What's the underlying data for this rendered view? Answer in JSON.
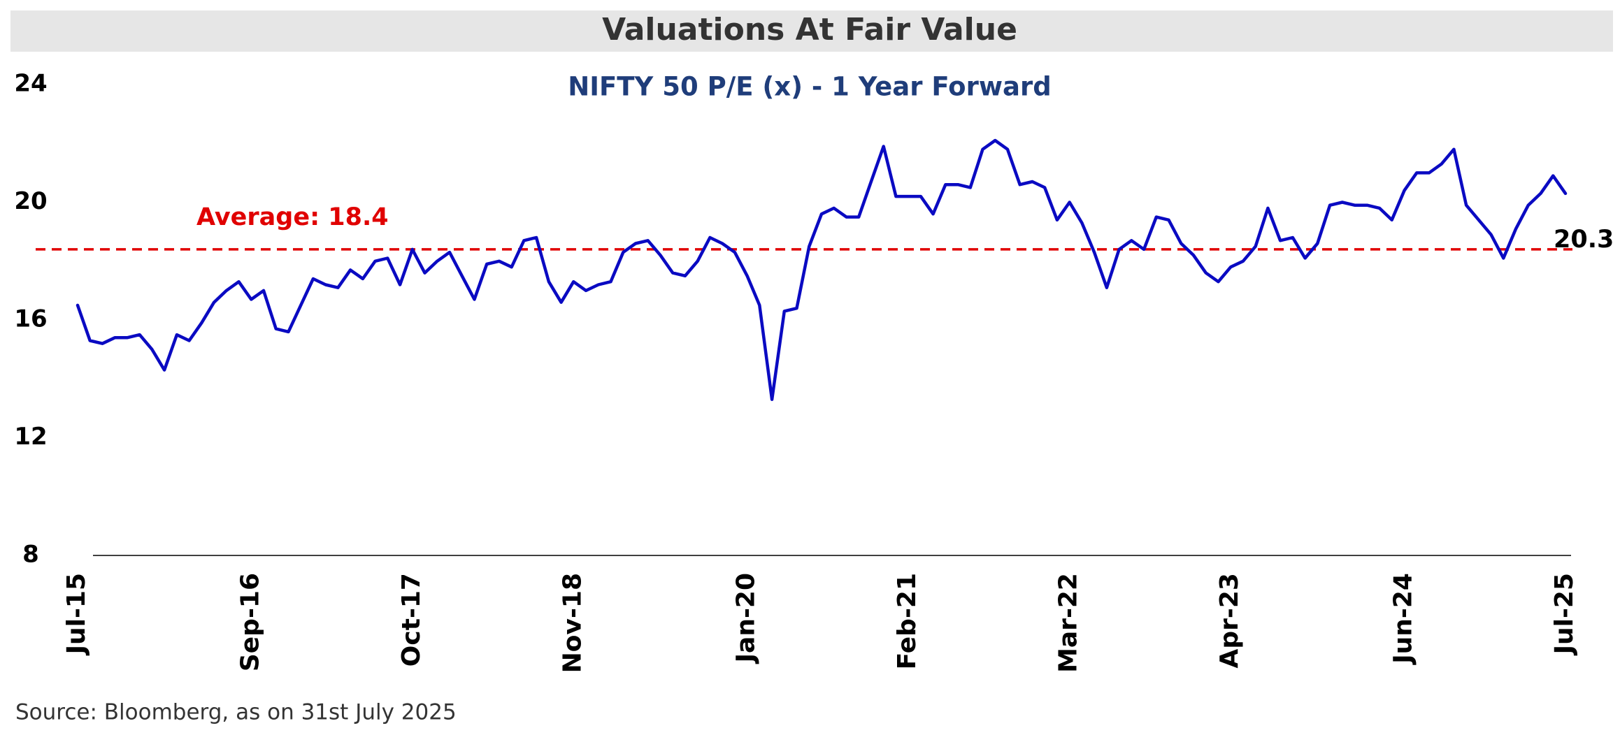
{
  "chart_data": {
    "type": "line",
    "title": "Valuations At Fair Value",
    "subtitle": "NIFTY 50 P/E (x) - 1 Year Forward",
    "source": "Source: Bloomberg, as on 31st July 2025",
    "categories": [
      "Jul-15",
      null,
      null,
      null,
      null,
      null,
      null,
      null,
      null,
      null,
      null,
      null,
      null,
      null,
      "Sep-16",
      null,
      null,
      null,
      null,
      null,
      null,
      null,
      null,
      null,
      null,
      null,
      null,
      "Oct-17",
      null,
      null,
      null,
      null,
      null,
      null,
      null,
      null,
      null,
      null,
      null,
      null,
      "Nov-18",
      null,
      null,
      null,
      null,
      null,
      null,
      null,
      null,
      null,
      null,
      null,
      null,
      null,
      "Jan-20",
      null,
      null,
      null,
      null,
      null,
      null,
      null,
      null,
      null,
      null,
      null,
      null,
      "Feb-21",
      null,
      null,
      null,
      null,
      null,
      null,
      null,
      null,
      null,
      null,
      null,
      null,
      "Mar-22",
      null,
      null,
      null,
      null,
      null,
      null,
      null,
      null,
      null,
      null,
      null,
      null,
      "Apr-23",
      null,
      null,
      null,
      null,
      null,
      null,
      null,
      null,
      null,
      null,
      null,
      null,
      null,
      "Jun-24",
      null,
      null,
      null,
      null,
      null,
      null,
      null,
      null,
      null,
      null,
      null,
      null,
      "Jul-25"
    ],
    "series": [
      {
        "name": "NIFTY 50 P/E",
        "color": "#0a0ac2",
        "values": [
          16.5,
          15.3,
          15.2,
          15.4,
          15.4,
          15.5,
          15.0,
          14.3,
          15.5,
          15.3,
          15.9,
          16.6,
          17.0,
          17.3,
          16.7,
          17.0,
          15.7,
          15.6,
          16.5,
          17.4,
          17.2,
          17.1,
          17.7,
          17.4,
          18.0,
          18.1,
          17.2,
          18.4,
          17.6,
          18.0,
          18.3,
          17.5,
          16.7,
          17.9,
          18.0,
          17.8,
          18.7,
          18.8,
          17.3,
          16.6,
          17.3,
          17.0,
          17.2,
          17.3,
          18.3,
          18.6,
          18.7,
          18.2,
          17.6,
          17.5,
          18.0,
          18.8,
          18.6,
          18.3,
          17.5,
          16.5,
          13.3,
          16.3,
          16.4,
          18.5,
          19.6,
          19.8,
          19.5,
          19.5,
          20.7,
          21.9,
          20.2,
          20.2,
          20.2,
          19.6,
          20.6,
          20.6,
          20.5,
          21.8,
          22.1,
          21.8,
          20.6,
          20.7,
          20.5,
          19.4,
          20.0,
          19.3,
          18.3,
          17.1,
          18.4,
          18.7,
          18.4,
          19.5,
          19.4,
          18.6,
          18.2,
          17.6,
          17.3,
          17.8,
          18.0,
          18.5,
          19.8,
          18.7,
          18.8,
          18.1,
          18.6,
          19.9,
          20.0,
          19.9,
          19.9,
          19.8,
          19.4,
          20.4,
          21.0,
          21.0,
          21.3,
          21.8,
          19.9,
          19.4,
          18.9,
          18.1,
          19.1,
          19.9,
          20.3,
          20.9,
          20.3
        ]
      }
    ],
    "average": {
      "value": 18.4,
      "label": "Average: 18.4",
      "color": "#e00000"
    },
    "ylim": [
      8,
      24
    ],
    "yticks": [
      8,
      12,
      16,
      20,
      24
    ],
    "grid": false
  }
}
